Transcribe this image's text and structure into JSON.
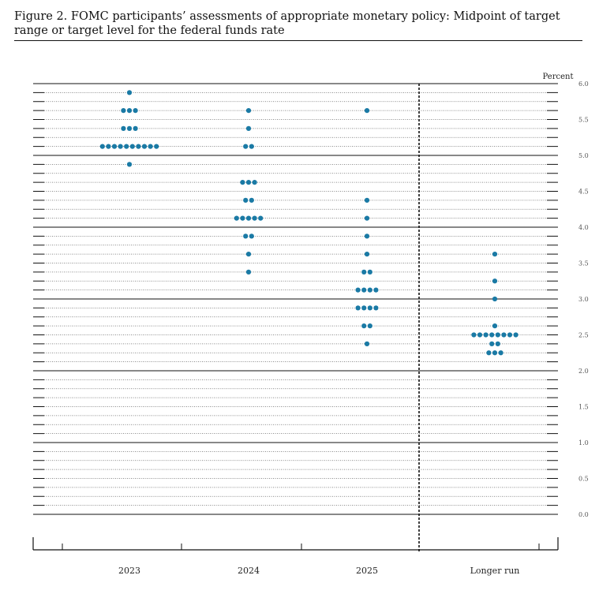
{
  "figure": {
    "title": "Figure 2.  FOMC participants’ assessments of appropriate monetary policy: Midpoint of target range or target level for the federal funds rate"
  },
  "chart_data": {
    "type": "scatter",
    "ylabel": "Percent",
    "ylim": [
      0,
      6
    ],
    "yticks": [
      "6.0",
      "5.5",
      "5.0",
      "4.5",
      "4.0",
      "3.5",
      "3.0",
      "2.5",
      "2.0",
      "1.5",
      "1.0",
      "0.5",
      "0.0"
    ],
    "categories": [
      "2023",
      "2024",
      "2025",
      "Longer run"
    ],
    "dot_color": "#1a7aa5",
    "dots": [
      {
        "category": "2023",
        "points": [
          {
            "y": 5.875,
            "count": 1
          },
          {
            "y": 5.625,
            "count": 3
          },
          {
            "y": 5.375,
            "count": 3
          },
          {
            "y": 5.125,
            "count": 10
          },
          {
            "y": 4.875,
            "count": 1
          }
        ]
      },
      {
        "category": "2024",
        "points": [
          {
            "y": 5.625,
            "count": 1
          },
          {
            "y": 5.375,
            "count": 1
          },
          {
            "y": 5.125,
            "count": 2
          },
          {
            "y": 4.625,
            "count": 3
          },
          {
            "y": 4.375,
            "count": 2
          },
          {
            "y": 4.125,
            "count": 5
          },
          {
            "y": 3.875,
            "count": 2
          },
          {
            "y": 3.625,
            "count": 1
          },
          {
            "y": 3.375,
            "count": 1
          }
        ]
      },
      {
        "category": "2025",
        "points": [
          {
            "y": 5.625,
            "count": 1
          },
          {
            "y": 4.375,
            "count": 1
          },
          {
            "y": 4.125,
            "count": 1
          },
          {
            "y": 3.875,
            "count": 1
          },
          {
            "y": 3.625,
            "count": 1
          },
          {
            "y": 3.375,
            "count": 2
          },
          {
            "y": 3.125,
            "count": 4
          },
          {
            "y": 2.875,
            "count": 4
          },
          {
            "y": 2.625,
            "count": 2
          },
          {
            "y": 2.375,
            "count": 1
          }
        ]
      },
      {
        "category": "Longer run",
        "points": [
          {
            "y": 3.625,
            "count": 1
          },
          {
            "y": 3.25,
            "count": 1
          },
          {
            "y": 3.0,
            "count": 1
          },
          {
            "y": 2.625,
            "count": 1
          },
          {
            "y": 2.5,
            "count": 8
          },
          {
            "y": 2.375,
            "count": 2
          },
          {
            "y": 2.25,
            "count": 3
          }
        ]
      }
    ],
    "grid": true
  }
}
